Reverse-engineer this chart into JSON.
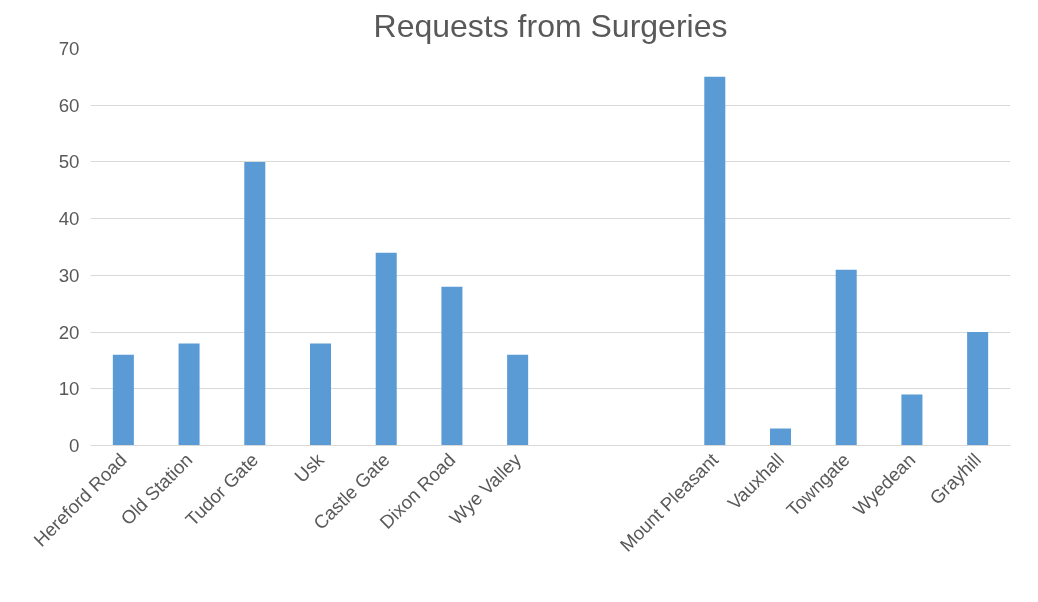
{
  "chart_data": {
    "type": "bar",
    "title": "Requests from Surgeries",
    "categories": [
      "Hereford Road",
      "Old Station",
      "Tudor Gate",
      "Usk",
      "Castle Gate",
      "Dixon Road",
      "Wye Valley",
      null,
      null,
      "Mount Pleasant",
      "Vauxhall",
      "Towngate",
      "Wyedean",
      "Grayhill"
    ],
    "values": [
      16,
      18,
      50,
      18,
      34,
      28,
      16,
      null,
      null,
      65,
      3,
      31,
      9,
      20
    ],
    "color": "#5b9bd5",
    "ylim": [
      0,
      70
    ],
    "yticks": [
      0,
      10,
      20,
      30,
      40,
      50,
      60,
      70
    ],
    "grid": "y"
  }
}
